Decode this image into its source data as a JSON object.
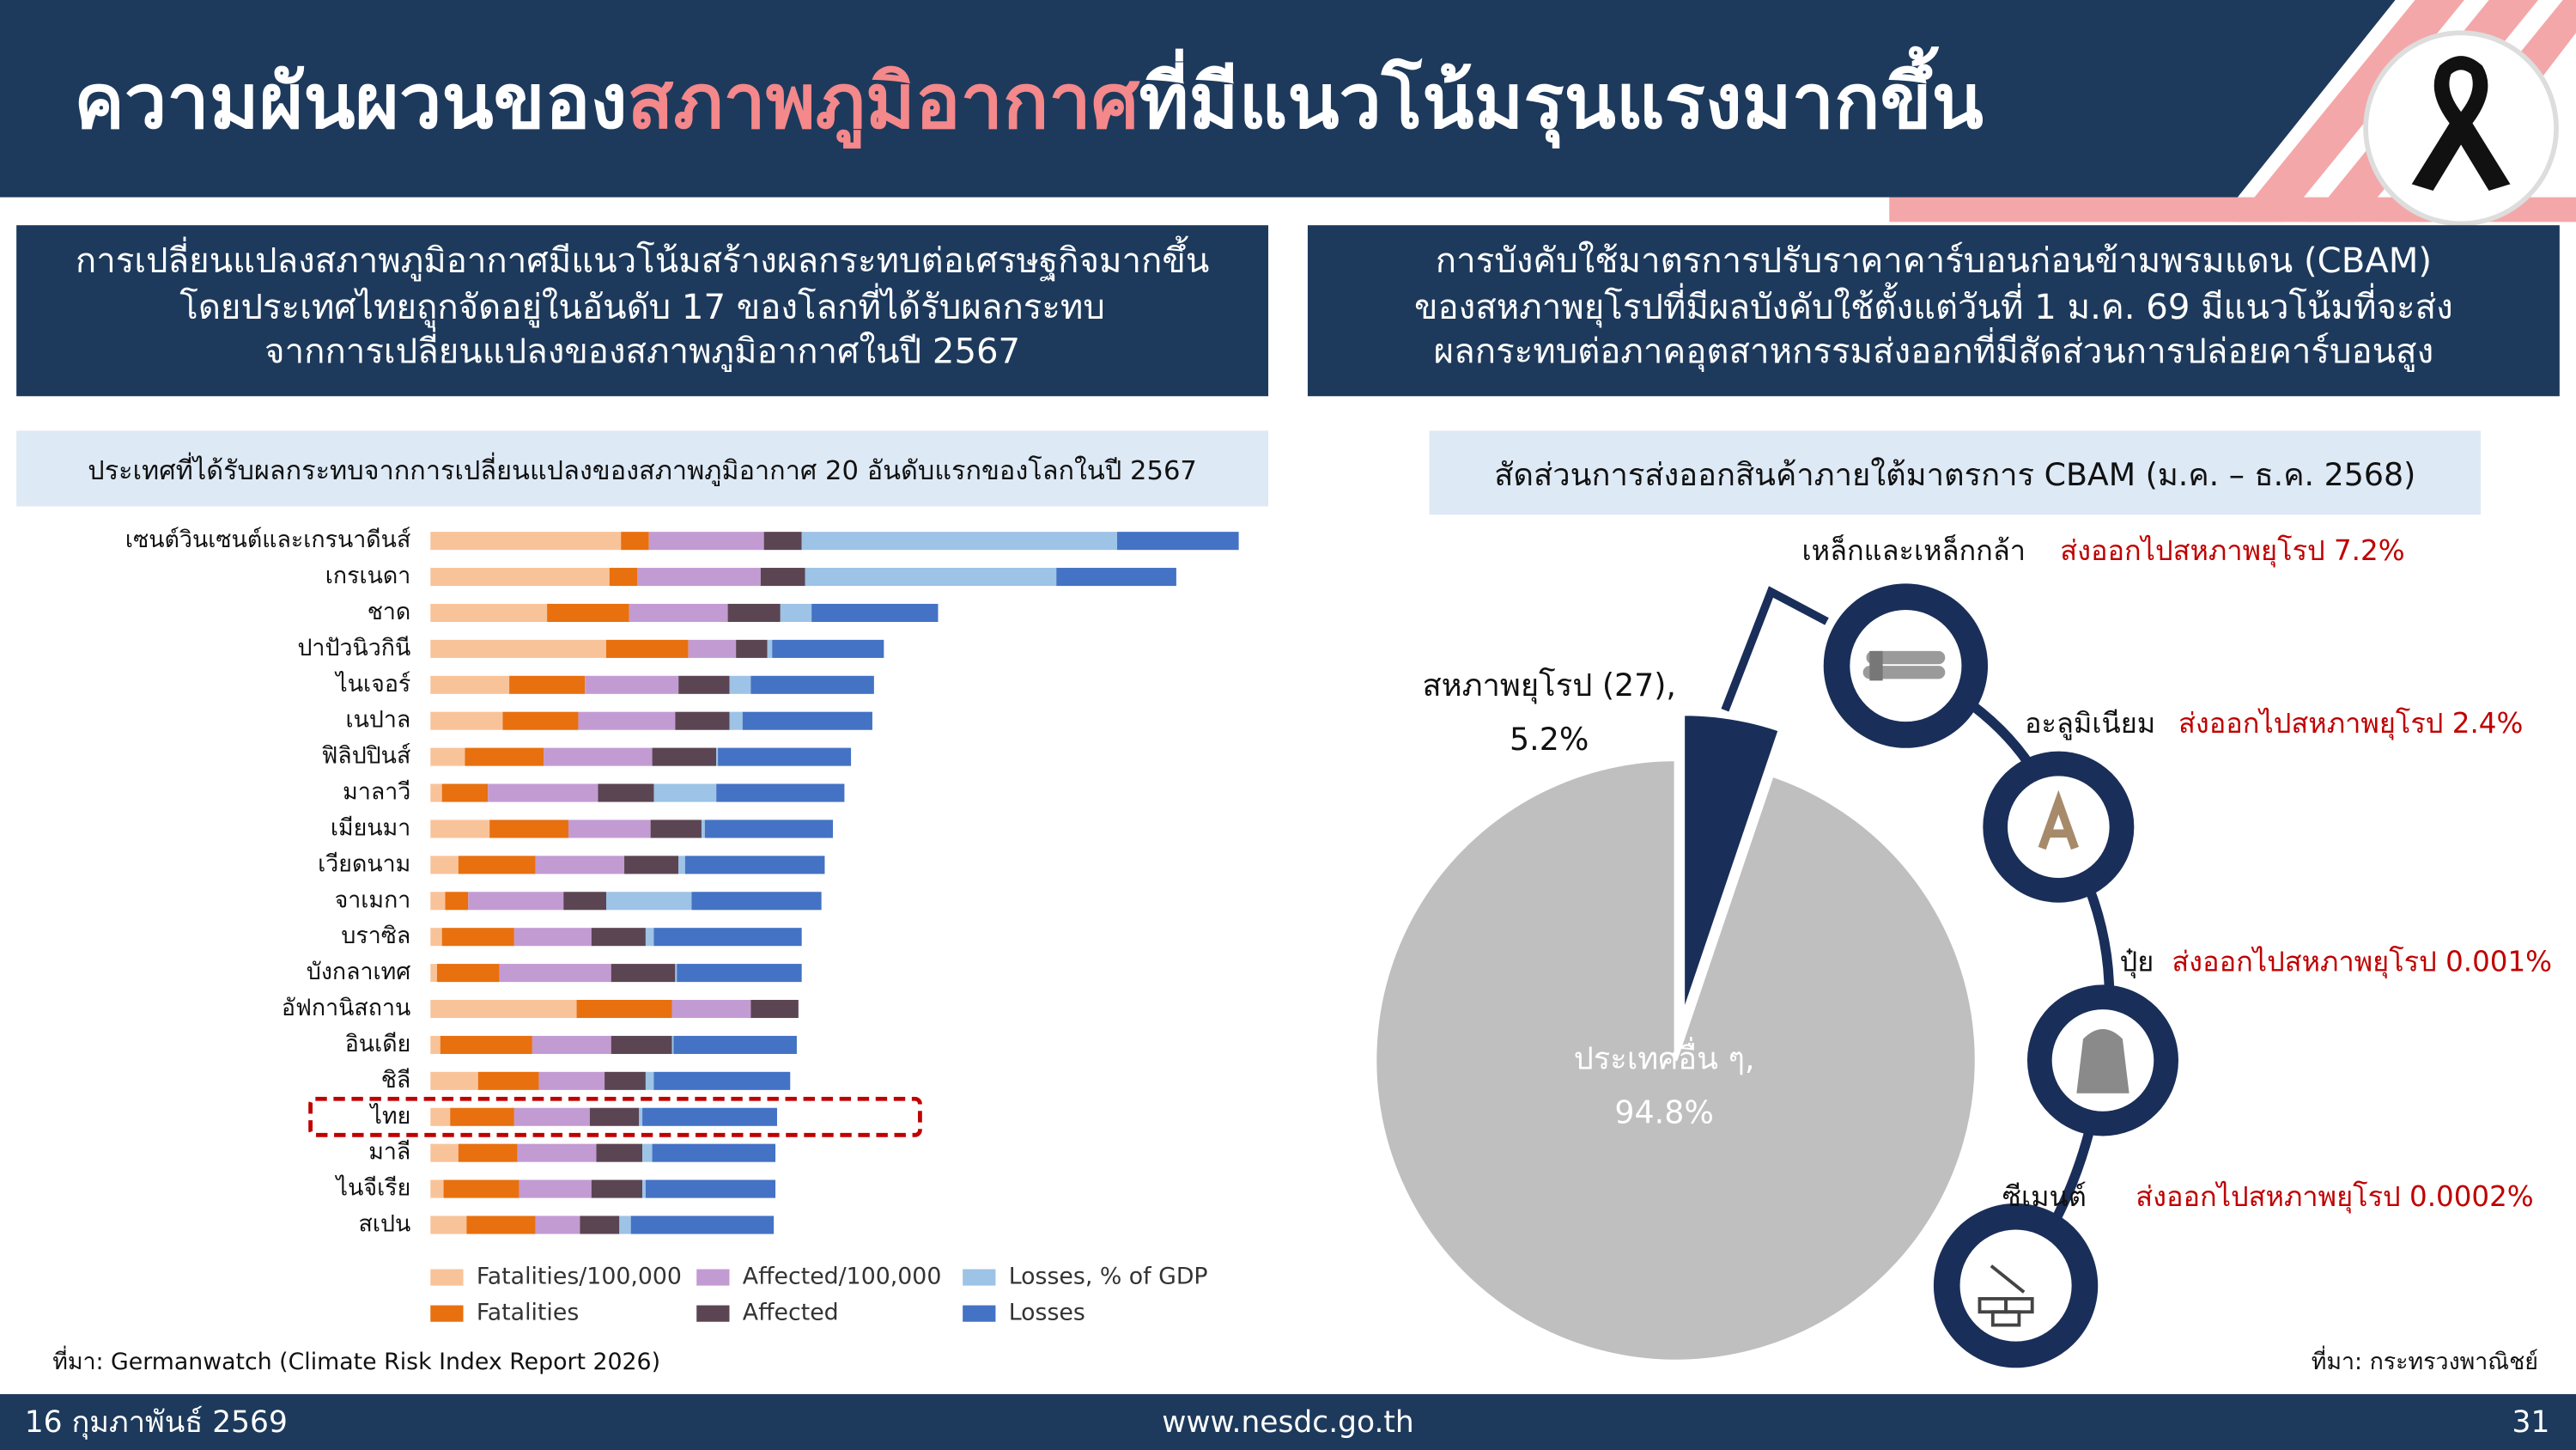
{
  "header": {
    "title_parts": [
      "ความผันผวนของ",
      "สภาพภูมิอากาศ",
      "ที่มีแนวโน้มรุนแรงมากขึ้น"
    ]
  },
  "panels": [
    {
      "heading": [
        "การเปลี่ยนแปลงสภาพภูมิอากาศมีแนวโน้มสร้างผลกระทบต่อเศรษฐกิจมากขึ้น",
        "โดยประเทศไทยถูกจัดอยู่ในอันดับ 17 ของโลกที่ได้รับผลกระทบ",
        "จากการเปลี่ยนแปลงของสภาพภูมิอากาศในปี 2567"
      ]
    },
    {
      "heading": [
        "การบังคับใช้มาตรการปรับราคาคาร์บอนก่อนข้ามพรมแดน (CBAM)",
        "ของสหภาพยุโรปที่มีผลบังคับใช้ตั้งแต่วันที่ 1 ม.ค. 69 มีแนวโน้มที่จะส่ง",
        "ผลกระทบต่อภาคอุตสาหกรรมส่งออกที่มีสัดส่วนการปล่อยคาร์บอนสูง"
      ]
    }
  ],
  "chart_data": [
    {
      "type": "bar",
      "orientation": "horizontal",
      "stacked": true,
      "title": "ประเทศที่ได้รับผลกระทบจากการเปลี่ยนแปลงของสภาพภูมิอากาศ 20 อันดับแรกของโลกในปี 2567",
      "categories": [
        "เซนต์วินเซนต์และเกรนาดีนส์",
        "เกรเนดา",
        "ชาด",
        "ปาปัวนิวกินี",
        "ไนเจอร์",
        "เนปาล",
        "ฟิลิปปินส์",
        "มาลาวี",
        "เมียนมา",
        "เวียดนาม",
        "จาเมกา",
        "บราซิล",
        "บังกลาเทศ",
        "อัฟกานิสถาน",
        "อินเดีย",
        "ชิลี",
        "ไทย",
        "มาลี",
        "ไนจีเรีย",
        "สเปน"
      ],
      "xlim": [
        0,
        500
      ],
      "highlight_category": "ไทย",
      "series": [
        {
          "name": "Fatalities/100,000",
          "color": "#f9c39a",
          "values": [
            116,
            109,
            71,
            107,
            48,
            44,
            21,
            7,
            36,
            17,
            9,
            7,
            4,
            89,
            6,
            29,
            12,
            17,
            8,
            22
          ]
        },
        {
          "name": "Fatalities",
          "color": "#e8700f",
          "values": [
            17,
            17,
            50,
            50,
            46,
            46,
            48,
            28,
            48,
            47,
            14,
            44,
            38,
            58,
            56,
            37,
            39,
            36,
            46,
            42
          ]
        },
        {
          "name": "Affected/100,000",
          "color": "#c39bd3",
          "values": [
            70,
            75,
            60,
            29,
            57,
            59,
            66,
            67,
            50,
            54,
            58,
            47,
            68,
            48,
            48,
            40,
            46,
            48,
            44,
            27
          ]
        },
        {
          "name": "Affected",
          "color": "#5b4553",
          "values": [
            23,
            27,
            32,
            19,
            31,
            33,
            39,
            34,
            31,
            33,
            26,
            33,
            39,
            29,
            37,
            25,
            30,
            28,
            31,
            24
          ]
        },
        {
          "name": "Losses, % of GDP",
          "color": "#9dc3e6",
          "values": [
            192,
            153,
            19,
            3,
            13,
            8,
            1,
            38,
            2,
            4,
            52,
            5,
            1,
            0,
            1,
            5,
            2,
            6,
            2,
            7
          ]
        },
        {
          "name": "Losses",
          "color": "#4472c4",
          "values": [
            74,
            73,
            77,
            68,
            75,
            79,
            81,
            78,
            78,
            85,
            79,
            90,
            76,
            0,
            75,
            83,
            82,
            75,
            79,
            87
          ]
        }
      ]
    },
    {
      "type": "pie",
      "title": "สัดส่วนการส่งออกสินค้าภายใต้มาตรการ CBAM (ม.ค. – ธ.ค. 2568)",
      "categories": [
        "สหภาพยุโรป (27),",
        "ประเทศอื่น ๆ,"
      ],
      "values": [
        5.2,
        94.8
      ],
      "value_labels": [
        "5.2%",
        "94.8%"
      ],
      "colors": [
        "#1a2e5a",
        "#bfbfbf"
      ],
      "explode": [
        true,
        false
      ]
    }
  ],
  "products": [
    {
      "name": "เหล็กและเหล็กกล้า",
      "share": "ส่งออกไปสหภาพยุโรป 7.2%"
    },
    {
      "name": "อะลูมิเนียม",
      "share": "ส่งออกไปสหภาพยุโรป 2.4%"
    },
    {
      "name": "ปุ๋ย",
      "share": "ส่งออกไปสหภาพยุโรป 0.001%"
    },
    {
      "name": "ซีเมนต์",
      "share": "ส่งออกไปสหภาพยุโรป 0.0002%"
    }
  ],
  "sources": [
    "ที่มา: Germanwatch (Climate Risk Index Report 2026)",
    "ที่มา: กระทรวงพาณิชย์"
  ],
  "footer": {
    "date": "16 กุมภาพันธ์ 2569",
    "url": "www.nesdc.go.th",
    "page": "31"
  }
}
